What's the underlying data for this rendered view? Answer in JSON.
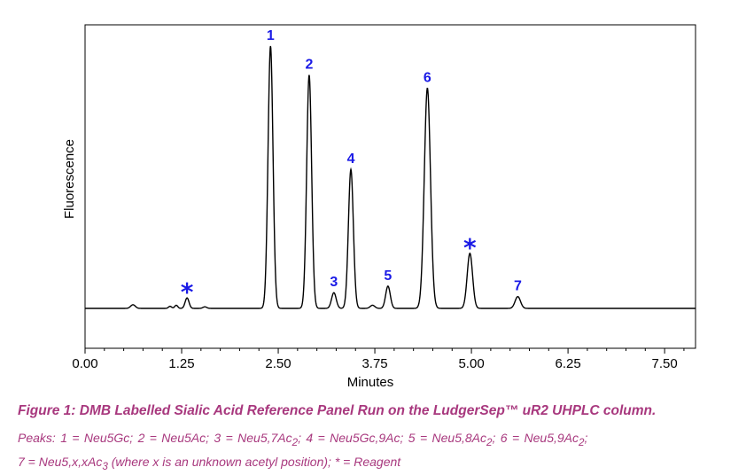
{
  "chart_data": {
    "type": "line",
    "title": "",
    "xlabel": "Minutes",
    "ylabel": "Fluorescence",
    "xlim": [
      0,
      7.9
    ],
    "xticks": [
      "0.00",
      "1.25",
      "2.50",
      "3.75",
      "5.00",
      "6.25",
      "7.50"
    ],
    "y_ticks_shown": false,
    "grid": false,
    "baseline": 0,
    "peaks": [
      {
        "x": 0.62,
        "y": 1.4,
        "label": ""
      },
      {
        "x": 1.1,
        "y": 0.8,
        "label": ""
      },
      {
        "x": 1.18,
        "y": 1.2,
        "label": ""
      },
      {
        "x": 1.32,
        "y": 4.0,
        "label": "*"
      },
      {
        "x": 1.55,
        "y": 0.6,
        "label": ""
      },
      {
        "x": 2.4,
        "y": 100,
        "label": "1"
      },
      {
        "x": 2.9,
        "y": 89,
        "label": "2"
      },
      {
        "x": 3.22,
        "y": 6,
        "label": "3"
      },
      {
        "x": 3.44,
        "y": 53,
        "label": "4"
      },
      {
        "x": 3.72,
        "y": 1.2,
        "label": ""
      },
      {
        "x": 3.92,
        "y": 8.5,
        "label": "5"
      },
      {
        "x": 4.43,
        "y": 84,
        "label": "6"
      },
      {
        "x": 4.98,
        "y": 21,
        "label": "*"
      },
      {
        "x": 5.6,
        "y": 4.5,
        "label": "7"
      }
    ]
  },
  "caption": {
    "title": "Figure 1:  DMB Labelled Sialic Acid Reference Panel Run on the LudgerSep™ uR2 UHPLC column.",
    "peaks_line1": {
      "prefix": "Peaks:  1 = Neu5Gc;  2 = Neu5Ac;  3 = Neu5,7Ac",
      "sub3": "2",
      "mid4": ";  4 = Neu5Gc,9Ac;  5 = Neu5,8Ac",
      "sub5": "2",
      "mid6": ";  6 = Neu5,9Ac",
      "sub6": "2",
      "end": ";"
    },
    "peaks_line2": {
      "prefix": "7 = Neu5,x,xAc",
      "sub7": "3",
      "suffix": " (where x is an unknown acetyl position); * = Reagent"
    }
  }
}
